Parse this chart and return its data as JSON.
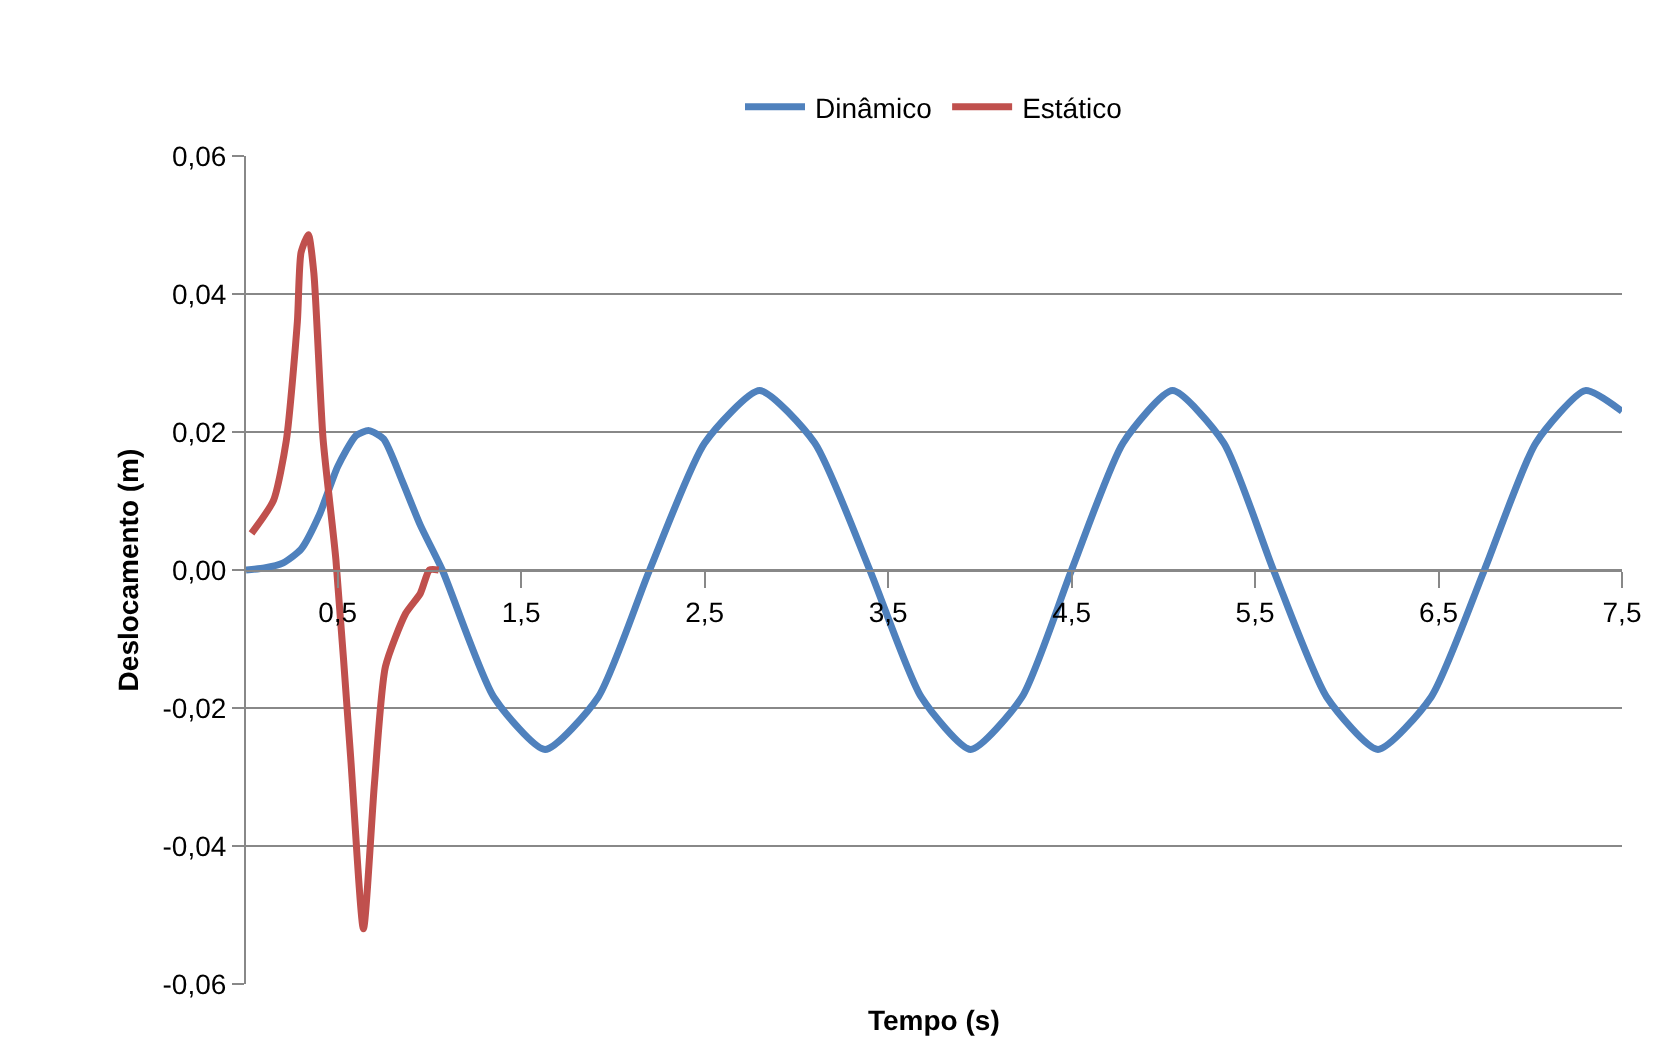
{
  "chart_data": {
    "type": "line",
    "xlabel": "Tempo (s)",
    "ylabel": "Deslocamento (m)",
    "xlim": [
      0,
      7.5
    ],
    "xticks": [
      {
        "value": 0.5,
        "label": "0,5"
      },
      {
        "value": 1.5,
        "label": "1,5"
      },
      {
        "value": 2.5,
        "label": "2,5"
      },
      {
        "value": 3.5,
        "label": "3,5"
      },
      {
        "value": 4.5,
        "label": "4,5"
      },
      {
        "value": 5.5,
        "label": "5,5"
      },
      {
        "value": 6.5,
        "label": "6,5"
      },
      {
        "value": 7.5,
        "label": "7,5"
      }
    ],
    "ylim": [
      -0.06,
      0.06
    ],
    "yticks": [
      {
        "value": -0.06,
        "label": "-0,06"
      },
      {
        "value": -0.04,
        "label": "-0,04"
      },
      {
        "value": -0.02,
        "label": "-0,02"
      },
      {
        "value": 0,
        "label": "0,00"
      },
      {
        "value": 0.02,
        "label": "0,02"
      },
      {
        "value": 0.04,
        "label": "0,04"
      },
      {
        "value": 0.06,
        "label": "0,06"
      }
    ],
    "grid": "y",
    "legend": "top",
    "marker": "none",
    "line_style": "solid",
    "series": [
      {
        "name": "Dinâmico",
        "color": "#4f81bd",
        "x": [
          0,
          0.1,
          0.2,
          0.3,
          0.4,
          0.5,
          0.6,
          0.67,
          0.75,
          0.85,
          0.95,
          1.07,
          1.35,
          1.63,
          1.92,
          2.2,
          2.5,
          2.8,
          3.1,
          3.4,
          3.68,
          3.95,
          4.23,
          4.5,
          4.78,
          5.05,
          5.33,
          5.6,
          5.89,
          6.17,
          6.46,
          6.75,
          7.03,
          7.3,
          7.5
        ],
        "values": [
          0,
          0.0003,
          0.001,
          0.003,
          0.008,
          0.015,
          0.0195,
          0.0202,
          0.019,
          0.013,
          0.0065,
          0,
          -0.0184,
          -0.026,
          -0.0184,
          0,
          0.0184,
          0.026,
          0.0184,
          0,
          -0.0184,
          -0.026,
          -0.0184,
          0,
          0.0184,
          0.026,
          0.0184,
          0,
          -0.0184,
          -0.026,
          -0.0184,
          0,
          0.0184,
          0.026,
          0.023
        ]
      },
      {
        "name": "Estático",
        "color": "#c0504d",
        "x": [
          0.03,
          0.15,
          0.22,
          0.28,
          0.3,
          0.34,
          0.37,
          0.42,
          0.49,
          0.57,
          0.64,
          0.7,
          0.76,
          0.87,
          0.95,
          1.0,
          1.05
        ],
        "values": [
          0.0053,
          0.0101,
          0.0188,
          0.036,
          0.046,
          0.0486,
          0.043,
          0.019,
          0.0015,
          -0.027,
          -0.052,
          -0.031,
          -0.014,
          -0.0063,
          -0.0034,
          0,
          0
        ]
      }
    ]
  }
}
